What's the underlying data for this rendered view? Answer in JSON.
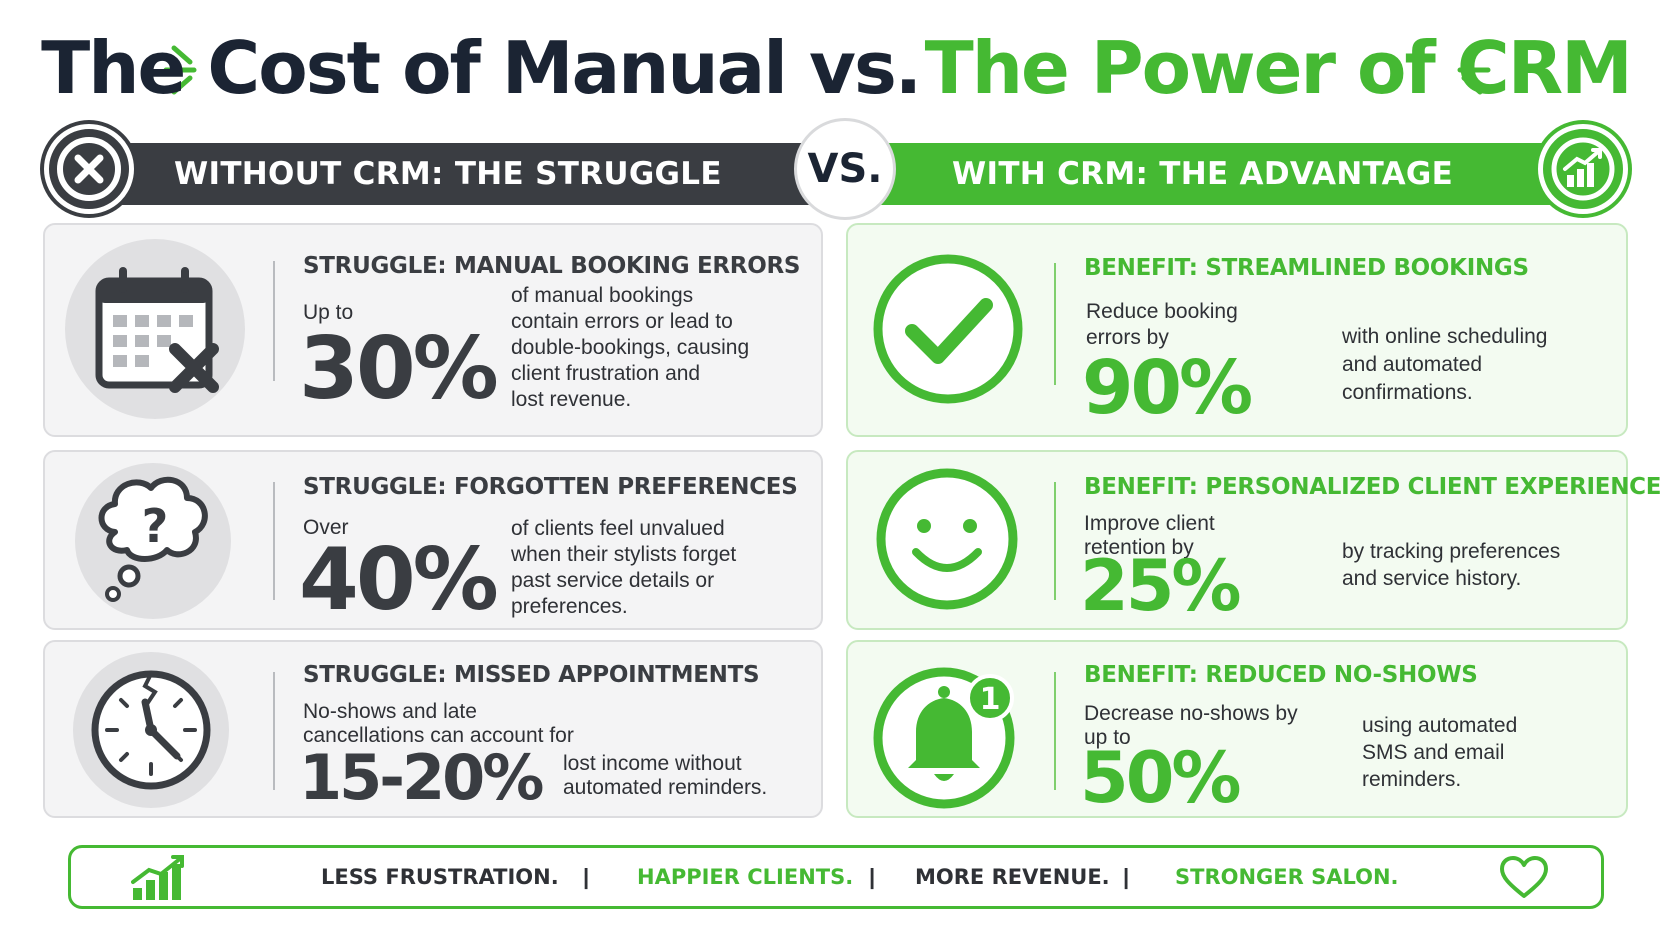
{
  "title": {
    "part1": "The Cost of Manual vs.",
    "part2": "The Power of CRM"
  },
  "header": {
    "left_label": "WITHOUT CRM: THE STRUGGLE",
    "vs_label": "VS.",
    "right_label": "WITH CRM: THE ADVANTAGE"
  },
  "colors": {
    "dark": "#3a3d42",
    "accent_green": "#45b933",
    "light_gray": "#f4f4f5",
    "light_green": "#f3fbf1"
  },
  "struggles": [
    {
      "icon": "calendar-x-icon",
      "title": "STRUGGLE: MANUAL BOOKING ERRORS",
      "prefix": "Up to",
      "stat": "30%",
      "desc": [
        "of manual bookings",
        "contain errors or lead to",
        "double-bookings, causing",
        "client frustration and",
        "lost revenue."
      ]
    },
    {
      "icon": "thought-question-icon",
      "title": "STRUGGLE: FORGOTTEN PREFERENCES",
      "prefix": "Over",
      "stat": "40%",
      "desc": [
        "of clients feel unvalued",
        "when their stylists forget",
        "past service details or",
        "preferences."
      ]
    },
    {
      "icon": "broken-clock-icon",
      "title": "STRUGGLE: MISSED APPOINTMENTS",
      "prefix": [
        "No-shows and late",
        "cancellations can account for"
      ],
      "stat": "15-20%",
      "desc": [
        "lost income without",
        "automated reminders."
      ]
    }
  ],
  "benefits": [
    {
      "icon": "checkmark-circle-icon",
      "title": "BENEFIT: STREAMLINED BOOKINGS",
      "prefix": [
        "Reduce booking",
        "errors by"
      ],
      "stat": "90%",
      "desc": [
        "with online scheduling",
        "and automated",
        "confirmations."
      ]
    },
    {
      "icon": "smiley-face-icon",
      "title": "BENEFIT: PERSONALIZED CLIENT EXPERIENCE",
      "prefix": [
        "Improve client",
        "retention by"
      ],
      "stat": "25%",
      "desc": [
        "by tracking preferences",
        "and service history."
      ]
    },
    {
      "icon": "bell-notification-icon",
      "badge": "1",
      "title": "BENEFIT: REDUCED NO-SHOWS",
      "prefix": [
        "Decrease no-shows by",
        "up to"
      ],
      "stat": "50%",
      "desc": [
        "using automated",
        "SMS and email",
        "reminders."
      ]
    }
  ],
  "footer": {
    "items": [
      "LESS FRUSTRATION.",
      "HAPPIER CLIENTS.",
      "MORE REVENUE.",
      "STRONGER SALON."
    ],
    "separator": "|"
  }
}
